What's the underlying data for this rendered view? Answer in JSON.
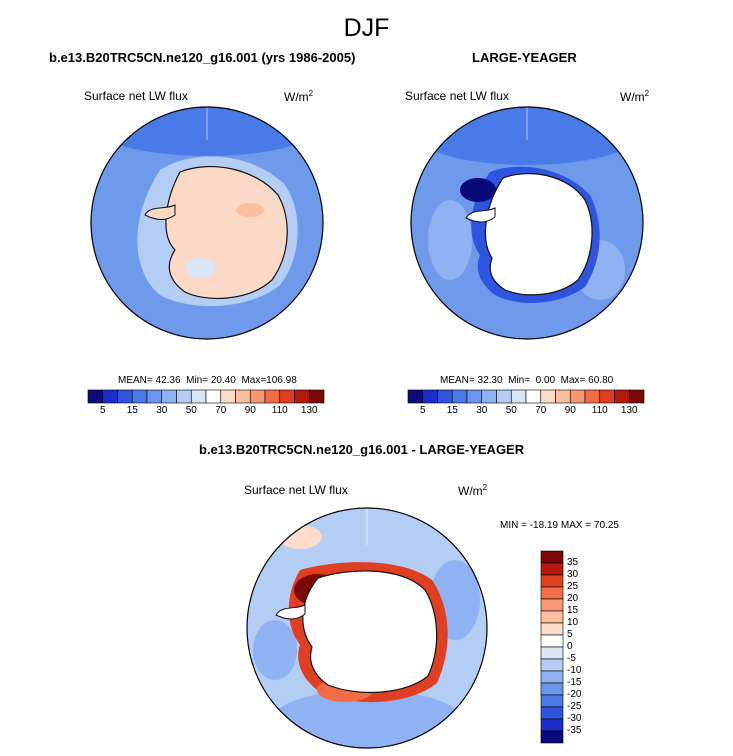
{
  "figure": {
    "title": "DJF"
  },
  "chart_data": [
    {
      "type": "heatmap",
      "title": "b.e13.B20TRC5CN.ne120_g16.001 (yrs 1986-2005)",
      "variable": "Surface net LW flux",
      "units": "W/m",
      "units_exp": "2",
      "stats": {
        "mean_label": "MEAN=",
        "mean": "42.36",
        "min_label": "Min=",
        "min": "20.40",
        "max_label": "Max=",
        "max": "106.98"
      },
      "colorbar": {
        "ticks": [
          "5",
          "15",
          "30",
          "50",
          "70",
          "90",
          "110",
          "130"
        ],
        "colors": [
          "#0a0a7d",
          "#1a2ecc",
          "#2d55e0",
          "#4a7ae8",
          "#6a96ee",
          "#8fb2f2",
          "#b4cdf5",
          "#d8e6f7",
          "#ffffff",
          "#fddccb",
          "#fbbe9f",
          "#f79872",
          "#f26d46",
          "#e03f22",
          "#b8180f",
          "#7d0608"
        ]
      },
      "region": "Antarctica polar stereographic"
    },
    {
      "type": "heatmap",
      "title": "LARGE-YEAGER",
      "variable": "Surface net LW flux",
      "units": "W/m",
      "units_exp": "2",
      "stats": {
        "mean_label": "MEAN=",
        "mean": "32.30",
        "min_label": "Min=",
        "min": "0.00",
        "max_label": "Max=",
        "max": "60.80"
      },
      "colorbar": {
        "ticks": [
          "5",
          "15",
          "30",
          "50",
          "70",
          "90",
          "110",
          "130"
        ],
        "colors": [
          "#0a0a7d",
          "#1a2ecc",
          "#2d55e0",
          "#4a7ae8",
          "#6a96ee",
          "#8fb2f2",
          "#b4cdf5",
          "#d8e6f7",
          "#ffffff",
          "#fddccb",
          "#fbbe9f",
          "#f79872",
          "#f26d46",
          "#e03f22",
          "#b8180f",
          "#7d0608"
        ]
      },
      "region": "Antarctica polar stereographic"
    },
    {
      "type": "heatmap",
      "title": "b.e13.B20TRC5CN.ne120_g16.001 - LARGE-YEAGER",
      "variable": "Surface net LW flux",
      "units": "W/m",
      "units_exp": "2",
      "stats": {
        "label": "MIN = -18.19 MAX =  70.25",
        "min": -18.19,
        "max": 70.25
      },
      "colorbar": {
        "ticks": [
          "35",
          "30",
          "25",
          "20",
          "15",
          "10",
          "5",
          "0",
          "-5",
          "-10",
          "-15",
          "-20",
          "-25",
          "-30",
          "-35"
        ],
        "colors": [
          "#7d0608",
          "#b8180f",
          "#e03f22",
          "#f26d46",
          "#f79872",
          "#fbbe9f",
          "#fddccb",
          "#ffffff",
          "#d8e6f7",
          "#b4cdf5",
          "#8fb2f2",
          "#6a96ee",
          "#4a7ae8",
          "#2d55e0",
          "#1a2ecc",
          "#0a0a7d"
        ]
      },
      "region": "Antarctica polar stereographic"
    }
  ]
}
